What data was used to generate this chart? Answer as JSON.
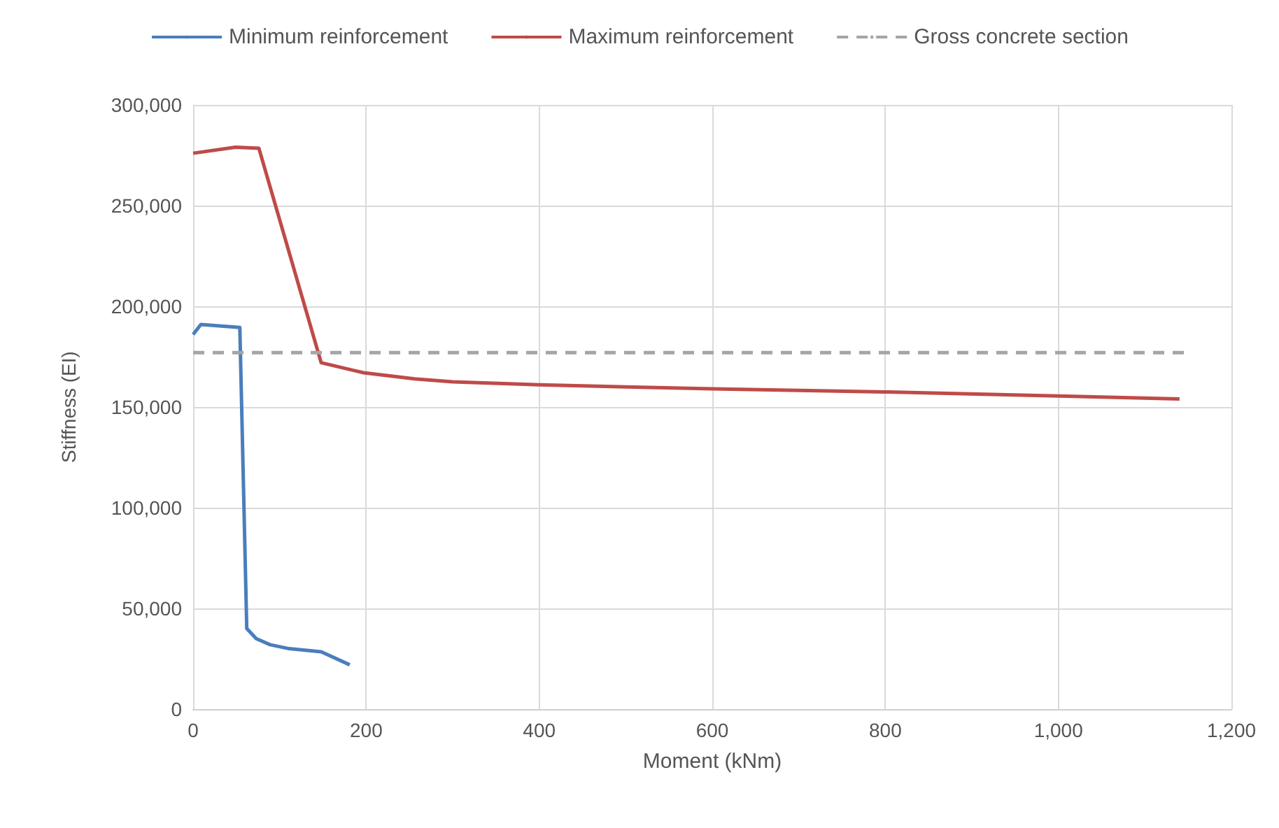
{
  "chart_data": {
    "type": "line",
    "xlabel": "Moment (kNm)",
    "ylabel": "Stiffness (EI)",
    "xlim": [
      0,
      1200
    ],
    "xticks": [
      0,
      200,
      400,
      600,
      800,
      {
        "value": 1000,
        "label": "1,000"
      },
      {
        "value": 1200,
        "label": "1,200"
      }
    ],
    "ylim": [
      0,
      300000
    ],
    "yticks": [
      0,
      {
        "value": 50000,
        "label": "50,000"
      },
      {
        "value": 100000,
        "label": "100,000"
      },
      {
        "value": 150000,
        "label": "150,000"
      },
      {
        "value": 200000,
        "label": "200,000"
      },
      {
        "value": 250000,
        "label": "250,000"
      },
      {
        "value": 300000,
        "label": "300,000"
      }
    ],
    "grid": true,
    "legend": "top",
    "marker": "none",
    "series": [
      {
        "name": "Minimum reinforcement",
        "color": "#4a7ebb",
        "line_style": "solid",
        "x": [
          0,
          9,
          54,
          62,
          73,
          89,
          111,
          148,
          181
        ],
        "values": [
          186000,
          191000,
          189500,
          40000,
          35000,
          32000,
          30000,
          28500,
          22000
        ]
      },
      {
        "name": "Maximum reinforcement",
        "color": "#be4b48",
        "line_style": "solid",
        "x": [
          0,
          49,
          76,
          148,
          197,
          256,
          300,
          401,
          500,
          600,
          800,
          1000,
          1140
        ],
        "values": [
          276000,
          279000,
          278500,
          172000,
          167000,
          164000,
          162500,
          161000,
          160000,
          159000,
          157500,
          155500,
          154000
        ]
      },
      {
        "name": "Gross concrete section",
        "color": "#a5a5a5",
        "line_style": "dashed",
        "x": [
          0,
          1150
        ],
        "values": [
          177000,
          177000
        ]
      }
    ]
  }
}
